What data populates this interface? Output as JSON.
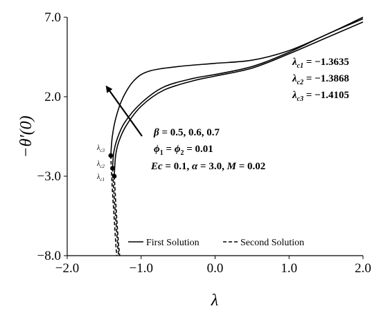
{
  "chart_data": {
    "type": "line",
    "xlabel": "λ",
    "ylabel": "−θ′(0)",
    "xlim": [
      -2.0,
      2.0
    ],
    "ylim": [
      -8.0,
      7.0
    ],
    "x_ticks": [
      "−2.0",
      "−1.0",
      "0.0",
      "1.0",
      "2.0"
    ],
    "y_ticks": [
      "7.0",
      "2.0",
      "−3.0",
      "−8.0"
    ],
    "grid": false,
    "legend": {
      "placement": "bottom",
      "entries": [
        {
          "label": "First Solution",
          "style": "solid"
        },
        {
          "label": "Second Solution",
          "style": "dashed"
        }
      ]
    },
    "series": [
      {
        "beta": "0.5",
        "critical_label": "λc1 = −1.3635",
        "first": [
          [
            -1.3635,
            -3.0
          ],
          [
            -1.345,
            -1.7
          ],
          [
            -1.3,
            -0.8
          ],
          [
            -1.2,
            0.2
          ],
          [
            -1.0,
            1.4
          ],
          [
            -0.7,
            2.4
          ],
          [
            -0.3,
            3.0
          ],
          [
            0.0,
            3.3
          ],
          [
            0.5,
            3.8
          ],
          [
            1.0,
            4.7
          ],
          [
            1.5,
            5.7
          ],
          [
            2.0,
            6.7
          ]
        ],
        "second": [
          [
            -1.3635,
            -3.0
          ],
          [
            -1.345,
            -4.5
          ],
          [
            -1.325,
            -6.0
          ],
          [
            -1.305,
            -7.3
          ],
          [
            -1.29,
            -8.0
          ]
        ]
      },
      {
        "beta": "0.6",
        "critical_label": "λc2 = −1.3868",
        "first": [
          [
            -1.3868,
            -2.5
          ],
          [
            -1.37,
            -1.5
          ],
          [
            -1.32,
            -0.6
          ],
          [
            -1.22,
            0.4
          ],
          [
            -1.0,
            1.6
          ],
          [
            -0.7,
            2.6
          ],
          [
            -0.3,
            3.15
          ],
          [
            0.0,
            3.4
          ],
          [
            0.5,
            3.9
          ],
          [
            1.0,
            4.8
          ],
          [
            1.5,
            5.9
          ],
          [
            2.0,
            6.9
          ]
        ],
        "second": [
          [
            -1.3868,
            -2.5
          ],
          [
            -1.365,
            -4.3
          ],
          [
            -1.34,
            -5.9
          ],
          [
            -1.32,
            -7.2
          ],
          [
            -1.305,
            -8.0
          ]
        ]
      },
      {
        "beta": "0.7",
        "critical_label": "λc3 = −1.4105",
        "first": [
          [
            -1.4105,
            -1.7
          ],
          [
            -1.39,
            -0.5
          ],
          [
            -1.34,
            0.7
          ],
          [
            -1.25,
            1.9
          ],
          [
            -1.1,
            3.0
          ],
          [
            -0.9,
            3.6
          ],
          [
            -0.5,
            3.9
          ],
          [
            0.0,
            4.1
          ],
          [
            0.5,
            4.3
          ],
          [
            1.0,
            4.9
          ],
          [
            1.5,
            5.9
          ],
          [
            2.0,
            7.0
          ]
        ],
        "second": [
          [
            -1.4105,
            -1.7
          ],
          [
            -1.39,
            -3.8
          ],
          [
            -1.365,
            -5.6
          ],
          [
            -1.345,
            -7.1
          ],
          [
            -1.33,
            -8.0
          ]
        ]
      }
    ],
    "annotations": {
      "beta_line": {
        "symbol": "β",
        "eq": " = 0.5, 0.6, 0.7"
      },
      "phi_line": {
        "sym1": "ϕ",
        "sub1": "1",
        "mid": " = ",
        "sym2": "ϕ",
        "sub2": "2",
        "eq": " = 0.01"
      },
      "params_line": {
        "ec": "Ec",
        "ec_eq": " = 0.1,  ",
        "alpha": "α",
        "alpha_eq": " = 3.0,  ",
        "m": "M",
        "m_eq": " = 0.02"
      },
      "critical_values": [
        {
          "sym": "λ",
          "sub": "c1",
          "eq": " = −1.3635"
        },
        {
          "sym": "λ",
          "sub": "c2",
          "eq": " = −1.3868"
        },
        {
          "sym": "λ",
          "sub": "c3",
          "eq": " = −1.4105"
        }
      ],
      "point_labels": [
        {
          "sym": "λ",
          "sub": "c3"
        },
        {
          "sym": "λ",
          "sub": "c2"
        },
        {
          "sym": "λ",
          "sub": "c1"
        }
      ]
    }
  }
}
